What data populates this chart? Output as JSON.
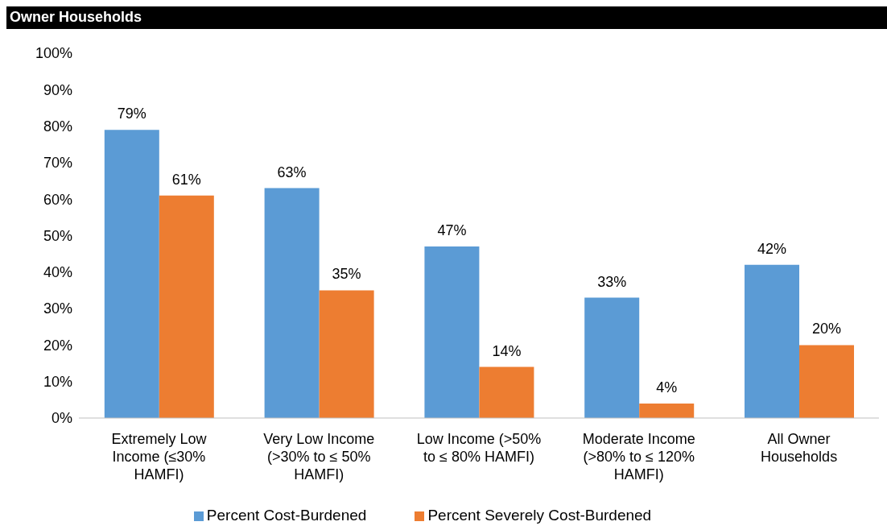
{
  "chart_data": {
    "type": "bar",
    "title": "Owner Households",
    "categories": [
      "Extremely Low Income (≤30% HAMFI)",
      "Very Low Income (>30% to ≤ 50% HAMFI)",
      "Low Income (>50% to ≤ 80% HAMFI)",
      "Moderate Income (>80% to ≤ 120% HAMFI)",
      "All Owner Households"
    ],
    "series": [
      {
        "name": "Percent Cost-Burdened",
        "color": "#5b9bd5",
        "values": [
          79,
          63,
          47,
          33,
          42
        ],
        "value_labels": [
          "79%",
          "63%",
          "47%",
          "33%",
          "42%"
        ]
      },
      {
        "name": "Percent Severely Cost-Burdened",
        "color": "#ed7d31",
        "values": [
          61,
          35,
          14,
          4,
          20
        ],
        "value_labels": [
          "61%",
          "35%",
          "14%",
          "4%",
          "20%"
        ]
      }
    ],
    "ylim": [
      0,
      100
    ],
    "yticks": [
      {
        "value": 0,
        "label": "0%"
      },
      {
        "value": 10,
        "label": "10%"
      },
      {
        "value": 20,
        "label": "20%"
      },
      {
        "value": 30,
        "label": "30%"
      },
      {
        "value": 40,
        "label": "40%"
      },
      {
        "value": 50,
        "label": "50%"
      },
      {
        "value": 60,
        "label": "60%"
      },
      {
        "value": 70,
        "label": "70%"
      },
      {
        "value": 80,
        "label": "80%"
      },
      {
        "value": 90,
        "label": "90%"
      },
      {
        "value": 100,
        "label": "100%"
      }
    ],
    "grid": false,
    "legend": "bottom"
  }
}
